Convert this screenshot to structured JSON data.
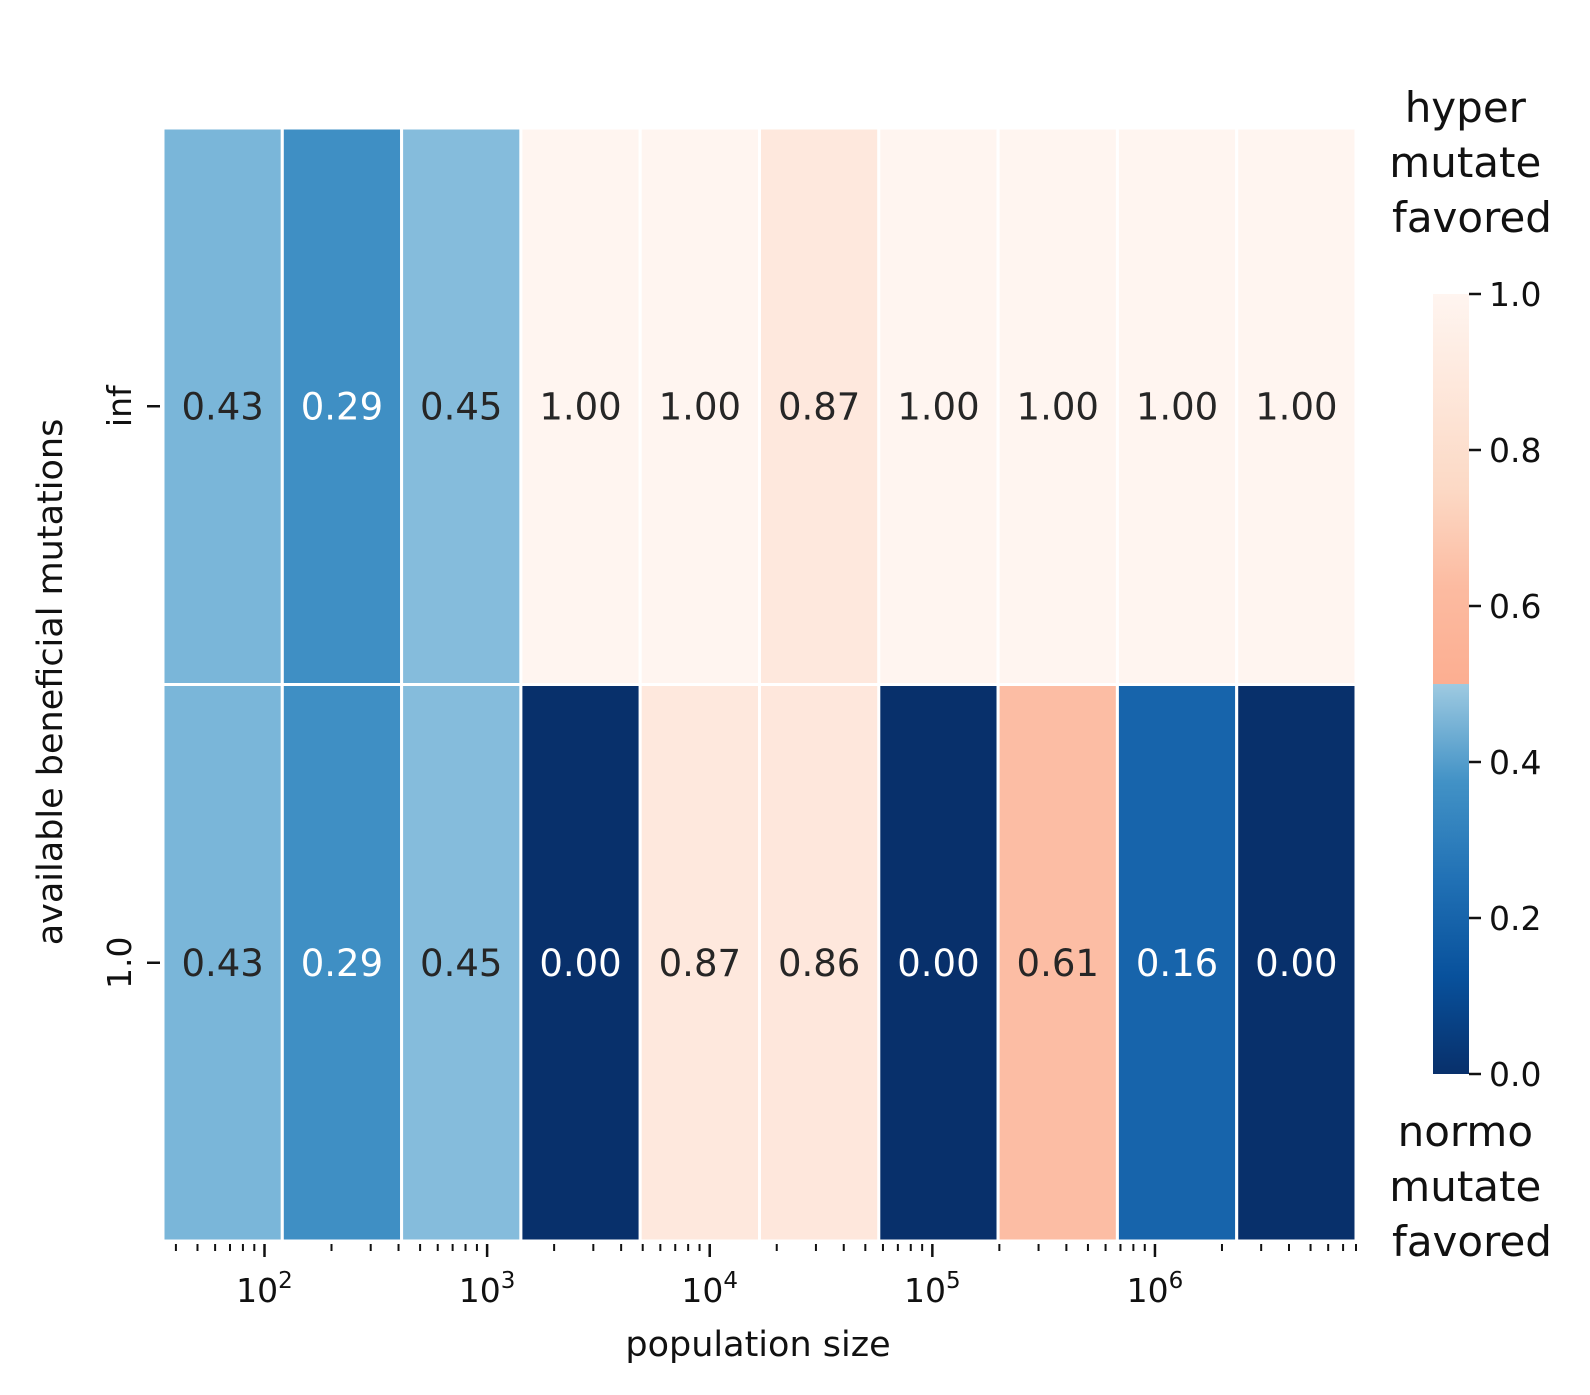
{
  "chart_data": {
    "type": "heatmap",
    "xlabel": "population size",
    "ylabel": "available beneficial mutations",
    "rows": [
      "inf",
      "1.0"
    ],
    "x_ticks": [
      {
        "exp": "2",
        "value": 100
      },
      {
        "exp": "3",
        "value": 1000
      },
      {
        "exp": "4",
        "value": 10000
      },
      {
        "exp": "5",
        "value": 100000
      },
      {
        "exp": "6",
        "value": 1000000
      }
    ],
    "x_tick_base": "10",
    "x_scale": "log",
    "x_range": [
      35,
      8000000
    ],
    "columns": 10,
    "values": [
      [
        0.43,
        0.29,
        0.45,
        1.0,
        1.0,
        0.87,
        1.0,
        1.0,
        1.0,
        1.0
      ],
      [
        0.43,
        0.29,
        0.45,
        0.0,
        0.87,
        0.86,
        0.0,
        0.61,
        0.16,
        0.0
      ]
    ],
    "colorbar": {
      "range": [
        0,
        1
      ],
      "ticks": [
        "0.0",
        "0.2",
        "0.4",
        "0.6",
        "0.8",
        "1.0"
      ],
      "top_label": [
        "hyper",
        "mutate",
        "favored"
      ],
      "bottom_label": [
        "normo",
        "mutate",
        "favored"
      ],
      "colormap": "diverging: Blues_r below 0.5, Reds above 0.5"
    },
    "grid": false,
    "legend": "right"
  }
}
